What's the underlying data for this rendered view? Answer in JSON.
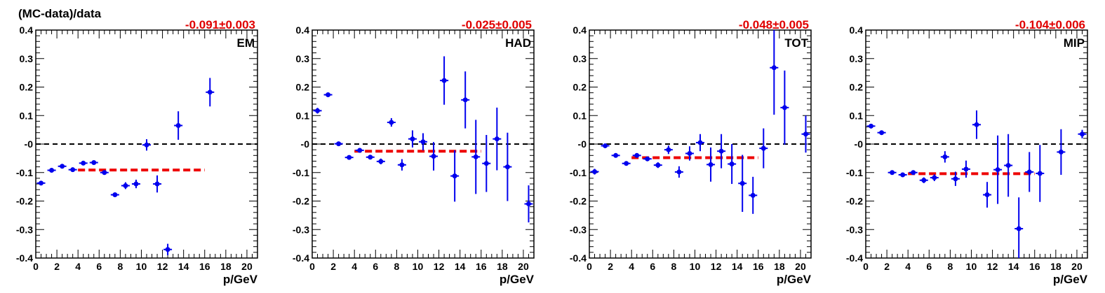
{
  "ylabel": "(MC-data)/data",
  "xlabel": "p/GeV",
  "colors": {
    "points": "#0000ee",
    "fit": "#ee0000",
    "zero_line": "#000000",
    "fit_text": "#e00000"
  },
  "chart_data": [
    {
      "type": "scatter",
      "panel_label": "EM",
      "fit_text": "-0.091±0.003",
      "fit": {
        "value": -0.091,
        "x_range": [
          4,
          16
        ]
      },
      "xlim": [
        0,
        21
      ],
      "ylim": [
        -0.4,
        0.4
      ],
      "xticks": [
        "0",
        "2",
        "4",
        "6",
        "8",
        "10",
        "12",
        "14",
        "16",
        "18",
        "20"
      ],
      "yticks": [
        "-0.4",
        "-0.3",
        "-0.2",
        "-0.1",
        "-0",
        "0.1",
        "0.2",
        "0.3",
        "0.4"
      ],
      "grid": false,
      "points": [
        {
          "x": 0.5,
          "y": -0.137,
          "err": 0.004
        },
        {
          "x": 1.5,
          "y": -0.092,
          "err": 0.004
        },
        {
          "x": 2.5,
          "y": -0.078,
          "err": 0.004
        },
        {
          "x": 3.5,
          "y": -0.09,
          "err": 0.004
        },
        {
          "x": 4.5,
          "y": -0.067,
          "err": 0.005
        },
        {
          "x": 5.5,
          "y": -0.065,
          "err": 0.005
        },
        {
          "x": 6.5,
          "y": -0.1,
          "err": 0.006
        },
        {
          "x": 7.5,
          "y": -0.178,
          "err": 0.006
        },
        {
          "x": 8.5,
          "y": -0.146,
          "err": 0.012
        },
        {
          "x": 9.5,
          "y": -0.14,
          "err": 0.015
        },
        {
          "x": 10.5,
          "y": -0.003,
          "err": 0.02
        },
        {
          "x": 11.5,
          "y": -0.14,
          "err": 0.03
        },
        {
          "x": 12.5,
          "y": -0.37,
          "err": 0.02
        },
        {
          "x": 13.5,
          "y": 0.065,
          "err": 0.05
        },
        {
          "x": 16.5,
          "y": 0.182,
          "err": 0.05
        }
      ]
    },
    {
      "type": "scatter",
      "panel_label": "HAD",
      "fit_text": "-0.025±0.005",
      "fit": {
        "value": -0.025,
        "x_range": [
          4,
          16
        ]
      },
      "xlim": [
        0,
        21
      ],
      "ylim": [
        -0.4,
        0.4
      ],
      "xticks": [
        "0",
        "2",
        "4",
        "6",
        "8",
        "10",
        "12",
        "14",
        "16",
        "18",
        "20"
      ],
      "yticks": [
        "-0.4",
        "-0.3",
        "-0.2",
        "-0.1",
        "-0",
        "0.1",
        "0.2",
        "0.3",
        "0.4"
      ],
      "grid": false,
      "points": [
        {
          "x": 0.5,
          "y": 0.117,
          "err": 0.01
        },
        {
          "x": 1.5,
          "y": 0.173,
          "err": 0.005
        },
        {
          "x": 2.5,
          "y": 0.001,
          "err": 0.004
        },
        {
          "x": 3.5,
          "y": -0.047,
          "err": 0.005
        },
        {
          "x": 4.5,
          "y": -0.022,
          "err": 0.008
        },
        {
          "x": 5.5,
          "y": -0.046,
          "err": 0.008
        },
        {
          "x": 6.5,
          "y": -0.061,
          "err": 0.01
        },
        {
          "x": 7.5,
          "y": 0.076,
          "err": 0.015
        },
        {
          "x": 8.5,
          "y": -0.073,
          "err": 0.02
        },
        {
          "x": 9.5,
          "y": 0.018,
          "err": 0.03
        },
        {
          "x": 10.5,
          "y": 0.008,
          "err": 0.03
        },
        {
          "x": 11.5,
          "y": -0.043,
          "err": 0.05
        },
        {
          "x": 12.5,
          "y": 0.223,
          "err": 0.085
        },
        {
          "x": 13.5,
          "y": -0.112,
          "err": 0.09
        },
        {
          "x": 14.5,
          "y": 0.155,
          "err": 0.1
        },
        {
          "x": 15.5,
          "y": -0.045,
          "err": 0.13
        },
        {
          "x": 16.5,
          "y": -0.068,
          "err": 0.1
        },
        {
          "x": 17.5,
          "y": 0.018,
          "err": 0.11
        },
        {
          "x": 18.5,
          "y": -0.08,
          "err": 0.12
        },
        {
          "x": 20.5,
          "y": -0.21,
          "err": 0.065
        }
      ]
    },
    {
      "type": "scatter",
      "panel_label": "TOT",
      "fit_text": "-0.048±0.005",
      "fit": {
        "value": -0.048,
        "x_range": [
          4,
          16
        ]
      },
      "xlim": [
        0,
        21
      ],
      "ylim": [
        -0.4,
        0.4
      ],
      "xticks": [
        "0",
        "2",
        "4",
        "6",
        "8",
        "10",
        "12",
        "14",
        "16",
        "18",
        "20"
      ],
      "yticks": [
        "-0.4",
        "-0.3",
        "-0.2",
        "-0.1",
        "-0",
        "0.1",
        "0.2",
        "0.3",
        "0.4"
      ],
      "grid": false,
      "points": [
        {
          "x": 0.5,
          "y": -0.097,
          "err": 0.01
        },
        {
          "x": 1.5,
          "y": -0.006,
          "err": 0.005
        },
        {
          "x": 2.5,
          "y": -0.04,
          "err": 0.005
        },
        {
          "x": 3.5,
          "y": -0.068,
          "err": 0.006
        },
        {
          "x": 4.5,
          "y": -0.04,
          "err": 0.008
        },
        {
          "x": 5.5,
          "y": -0.052,
          "err": 0.008
        },
        {
          "x": 6.5,
          "y": -0.074,
          "err": 0.01
        },
        {
          "x": 7.5,
          "y": -0.02,
          "err": 0.015
        },
        {
          "x": 8.5,
          "y": -0.098,
          "err": 0.02
        },
        {
          "x": 9.5,
          "y": -0.033,
          "err": 0.025
        },
        {
          "x": 10.5,
          "y": 0.005,
          "err": 0.03
        },
        {
          "x": 11.5,
          "y": -0.072,
          "err": 0.06
        },
        {
          "x": 12.5,
          "y": -0.025,
          "err": 0.06
        },
        {
          "x": 13.5,
          "y": -0.07,
          "err": 0.07
        },
        {
          "x": 14.5,
          "y": -0.138,
          "err": 0.1
        },
        {
          "x": 15.5,
          "y": -0.18,
          "err": 0.065
        },
        {
          "x": 16.5,
          "y": -0.015,
          "err": 0.07
        },
        {
          "x": 17.5,
          "y": 0.268,
          "err": 0.165
        },
        {
          "x": 18.5,
          "y": 0.128,
          "err": 0.13
        },
        {
          "x": 20.5,
          "y": 0.035,
          "err": 0.065
        }
      ]
    },
    {
      "type": "scatter",
      "panel_label": "MIP",
      "fit_text": "-0.104±0.006",
      "fit": {
        "value": -0.104,
        "x_range": [
          4,
          16
        ]
      },
      "xlim": [
        0,
        21
      ],
      "ylim": [
        -0.4,
        0.4
      ],
      "xticks": [
        "0",
        "2",
        "4",
        "6",
        "8",
        "10",
        "12",
        "14",
        "16",
        "18",
        "20"
      ],
      "yticks": [
        "-0.4",
        "-0.3",
        "-0.2",
        "-0.1",
        "-0",
        "0.1",
        "0.2",
        "0.3",
        "0.4"
      ],
      "grid": false,
      "points": [
        {
          "x": 0.5,
          "y": 0.063,
          "err": 0.008
        },
        {
          "x": 1.5,
          "y": 0.04,
          "err": 0.005
        },
        {
          "x": 2.5,
          "y": -0.1,
          "err": 0.005
        },
        {
          "x": 3.5,
          "y": -0.108,
          "err": 0.005
        },
        {
          "x": 4.5,
          "y": -0.1,
          "err": 0.006
        },
        {
          "x": 5.5,
          "y": -0.127,
          "err": 0.01
        },
        {
          "x": 6.5,
          "y": -0.118,
          "err": 0.012
        },
        {
          "x": 7.5,
          "y": -0.045,
          "err": 0.02
        },
        {
          "x": 8.5,
          "y": -0.122,
          "err": 0.025
        },
        {
          "x": 9.5,
          "y": -0.088,
          "err": 0.03
        },
        {
          "x": 10.5,
          "y": 0.068,
          "err": 0.05
        },
        {
          "x": 11.5,
          "y": -0.178,
          "err": 0.045
        },
        {
          "x": 12.5,
          "y": -0.09,
          "err": 0.12
        },
        {
          "x": 13.5,
          "y": -0.075,
          "err": 0.11
        },
        {
          "x": 14.5,
          "y": -0.297,
          "err": 0.11
        },
        {
          "x": 15.5,
          "y": -0.098,
          "err": 0.07
        },
        {
          "x": 16.5,
          "y": -0.103,
          "err": 0.1
        },
        {
          "x": 18.5,
          "y": -0.028,
          "err": 0.08
        },
        {
          "x": 20.5,
          "y": 0.035,
          "err": 0.015
        }
      ]
    }
  ]
}
